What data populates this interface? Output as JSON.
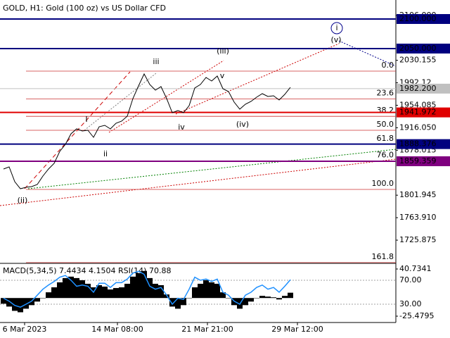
{
  "chart_data": [
    {
      "type": "line",
      "title": "GOLD, H1:  Gold (100 oz) vs US Dollar CFD",
      "values": [
        1846.3,
        1849.8,
        1824.8,
        1812.9,
        1815.3,
        1816.5,
        1820.0,
        1834.3,
        1846.3,
        1855.8,
        1876.0,
        1887.9,
        1905.8,
        1914.2,
        1910.6,
        1911.8,
        1899.9,
        1917.7,
        1920.1,
        1914.2,
        1923.7,
        1927.3,
        1935.6,
        1965.4,
        1986.8,
        2007.1,
        1989.2,
        1979.7,
        1985.6,
        1965.4,
        1941.6,
        1945.1,
        1941.6,
        1953.5,
        1983.3,
        1989.2,
        2001.1,
        1995.2,
        2003.5,
        1982.1,
        1977.3,
        1959.4,
        1947.5,
        1955.9,
        1960.6,
        1967.8,
        1973.7,
        1968.9,
        1970.1,
        1963.0,
        1972.5,
        1984.4
      ],
      "color": "#000000",
      "xlim": [
        0,
        69.75
      ],
      "xticks": [
        {
          "value": 3.75,
          "label": "6 Mar 2023"
        },
        {
          "value": 20.25,
          "label": "14 Mar 08:00"
        },
        {
          "value": 36.25,
          "label": "21 Mar 21:00"
        },
        {
          "value": 52.25,
          "label": "29 Mar 12:00"
        }
      ],
      "ylim": [
        1689.0,
        2126.2
      ],
      "yticks": [
        {
          "value": 2106,
          "label": "2106.000"
        },
        2030.155,
        1992.12,
        1954.085,
        {
          "value": 1916.05,
          "label": "1916.050"
        },
        1878.015,
        1801.945,
        {
          "value": 1763.91,
          "label": "1763.910"
        },
        1725.875
      ],
      "levels": [
        {
          "value": 2100,
          "label": "2100.000",
          "color": "#00007f"
        },
        {
          "value": 2050,
          "label": "2050.000",
          "color": "#00007f"
        },
        {
          "value": 1982.2,
          "label": "1982.200",
          "color": "#c0c0c0"
        },
        {
          "value": 1941.972,
          "label": "1941.972",
          "color": "#e00000"
        },
        {
          "value": 1888.376,
          "label": "1888.376",
          "color": "#00007f"
        },
        {
          "value": 1859.359,
          "label": "1859.359",
          "color": "#7f007f"
        }
      ],
      "fib_levels": [
        {
          "value": 2011.85,
          "label": "0.0"
        },
        {
          "value": 1964.6,
          "label": "23.6"
        },
        {
          "value": 1935.4,
          "label": "38.2"
        },
        {
          "value": 1911.8,
          "label": "50.0"
        },
        {
          "value": 1888.1,
          "label": "61.8"
        },
        {
          "value": 1859.7,
          "label": "76.0"
        },
        {
          "value": 1811.7,
          "label": "100.0"
        },
        {
          "value": 1688.0,
          "label": "161.8"
        }
      ],
      "wave_labels": [
        {
          "text": "i",
          "color": "#00008b"
        },
        {
          "text": "(v)",
          "color": "#c00000"
        },
        {
          "text": "(iii)",
          "color": "#c00000"
        },
        {
          "text": "iii",
          "color": "#808080"
        },
        {
          "text": "v",
          "color": "#808080"
        },
        {
          "text": "I",
          "color": "#808080"
        },
        {
          "text": "ii",
          "color": "#808080"
        },
        {
          "text": "iv",
          "color": "#808080"
        },
        {
          "text": "(iv)",
          "color": "#c00000"
        },
        {
          "text": "(ii)",
          "color": "#c00000"
        }
      ]
    },
    {
      "type": "bar",
      "title": "MACD(5,34,5) 7.4434 4.1504 RSI(14) 70.88",
      "values": [
        -8,
        -12,
        -18,
        -20,
        -15,
        -10,
        -5,
        0,
        8,
        15,
        22,
        28,
        30,
        28,
        25,
        20,
        15,
        18,
        16,
        12,
        14,
        15,
        20,
        30,
        35,
        38,
        28,
        20,
        18,
        5,
        -12,
        -15,
        -10,
        0,
        15,
        20,
        25,
        22,
        20,
        8,
        0,
        -10,
        -15,
        -10,
        -5,
        0,
        3,
        2,
        1,
        -2,
        3,
        7.4434
      ],
      "color": "#000000",
      "rsi": [
        40,
        35,
        28,
        25,
        30,
        35,
        45,
        55,
        62,
        68,
        75,
        78,
        70,
        60,
        62,
        60,
        50,
        65,
        65,
        58,
        66,
        66,
        72,
        82,
        85,
        80,
        60,
        55,
        58,
        45,
        30,
        40,
        38,
        55,
        75,
        70,
        72,
        68,
        72,
        50,
        45,
        35,
        30,
        45,
        50,
        58,
        62,
        55,
        58,
        50,
        60,
        70.88
      ],
      "rsi_color": "#1e90ff",
      "ylim": [
        -25.4795,
        40.7341
      ],
      "yticks": [
        40.7341,
        -25.4795
      ],
      "y2lim": [
        10,
        88.8
      ],
      "y2ticks": [
        {
          "value": 70,
          "label": "70.00"
        },
        {
          "value": 30,
          "label": "30.00"
        }
      ]
    }
  ]
}
